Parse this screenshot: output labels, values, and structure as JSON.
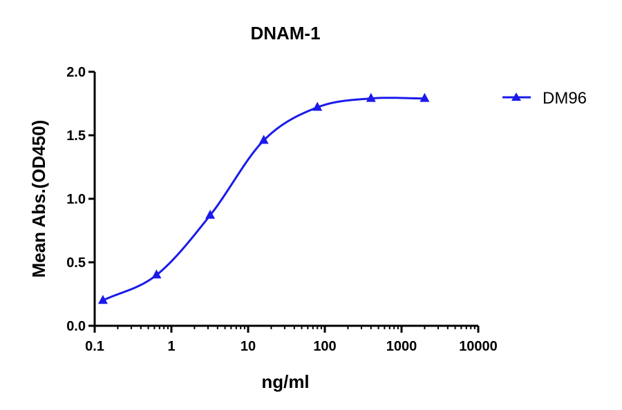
{
  "chart_data": {
    "type": "line",
    "title": "DNAM-1",
    "xlabel": "ng/ml",
    "ylabel": "Mean Abs.(OD450)",
    "x_scale": "log",
    "xlim": [
      0.1,
      10000
    ],
    "ylim": [
      0,
      2.0
    ],
    "x_ticks": [
      "0.1",
      "1",
      "10",
      "100",
      "1000",
      "10000"
    ],
    "y_ticks": [
      "0.0",
      "0.5",
      "1.0",
      "1.5",
      "2.0"
    ],
    "grid": false,
    "legend_position": "top-right",
    "series": [
      {
        "name": "DM96",
        "color": "#1a1aeb",
        "marker": "triangle",
        "x": [
          0.128,
          0.64,
          3.2,
          16,
          80,
          400,
          2000
        ],
        "y": [
          0.2,
          0.4,
          0.87,
          1.46,
          1.72,
          1.79,
          1.79
        ]
      }
    ]
  }
}
